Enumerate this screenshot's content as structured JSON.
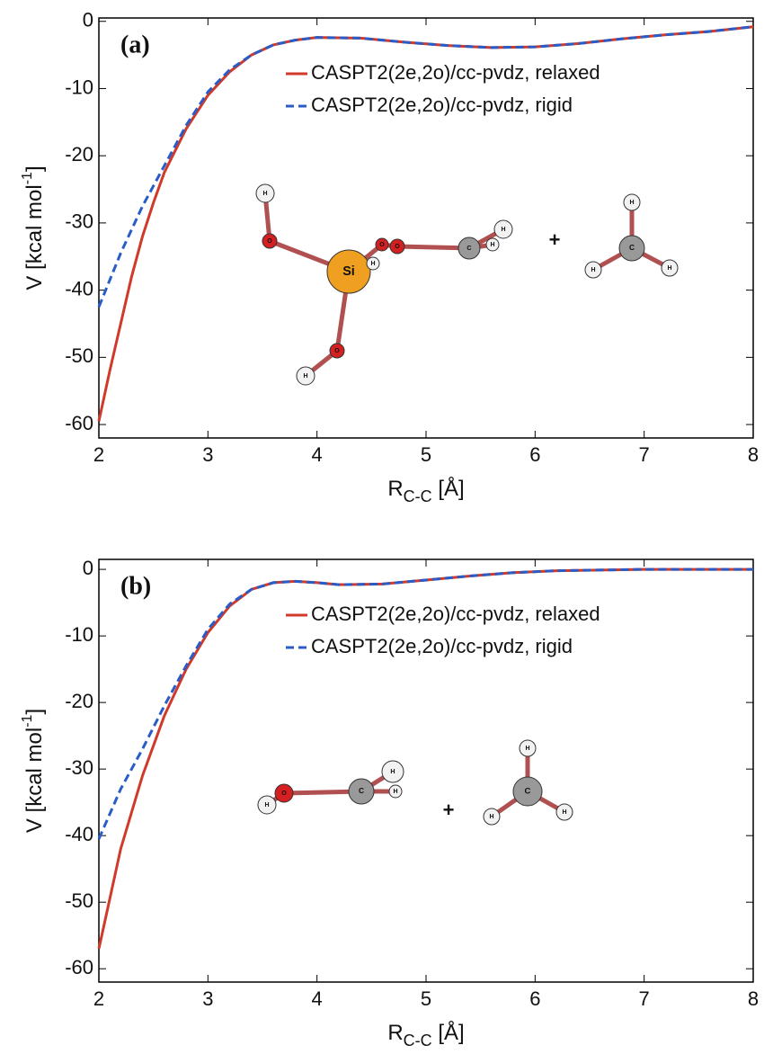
{
  "chart_data": [
    {
      "type": "line",
      "label": "(a)",
      "xlabel": {
        "main": "R",
        "sub": "C-C",
        "rest": " [Å]"
      },
      "ylabel": {
        "main": "V [kcal mol",
        "sup": "-1",
        "rest": "]"
      },
      "x": [
        2,
        2.1,
        2.2,
        2.3,
        2.4,
        2.5,
        2.6,
        2.8,
        3.0,
        3.2,
        3.4,
        3.6,
        3.8,
        4.0,
        4.4,
        4.8,
        5.2,
        5.6,
        6.0,
        6.4,
        6.8,
        7.2,
        7.6,
        8
      ],
      "series": [
        {
          "name": "CASPT2(2e,2o)/cc-pvdz, relaxed",
          "color": "#d03a2a",
          "dash": false,
          "values": [
            -59.5,
            -52,
            -45,
            -38,
            -32,
            -27,
            -22.5,
            -16,
            -11,
            -7.5,
            -5,
            -3.5,
            -2.8,
            -2.4,
            -2.5,
            -3.1,
            -3.6,
            -3.9,
            -3.8,
            -3.3,
            -2.6,
            -2,
            -1.5,
            -0.8
          ]
        },
        {
          "name": "CASPT2(2e,2o)/cc-pvdz, rigid",
          "color": "#2a5cc8",
          "dash": true,
          "values": [
            -42.5,
            -38.5,
            -34.5,
            -31,
            -27.5,
            -24.5,
            -21.5,
            -15.5,
            -10.5,
            -7.2,
            -5,
            -3.5,
            -2.8,
            -2.4,
            -2.5,
            -3.1,
            -3.6,
            -3.9,
            -3.8,
            -3.3,
            -2.6,
            -2,
            -1.5,
            -0.8
          ]
        }
      ],
      "xlim": [
        2,
        8
      ],
      "ylim": [
        -62,
        0.5
      ],
      "xticks": [
        2,
        3,
        4,
        5,
        6,
        7,
        8
      ],
      "yticks": [
        0,
        -10,
        -20,
        -30,
        -40,
        -50,
        -60
      ],
      "legend": "upper right",
      "annotations": [
        "H",
        "O",
        "Si",
        "H",
        "O",
        "O",
        "C",
        "H",
        "H",
        "O",
        "H",
        "+",
        "C",
        "H",
        "H",
        "H"
      ]
    },
    {
      "type": "line",
      "label": "(b)",
      "xlabel": {
        "main": "R",
        "sub": "C-C",
        "rest": " [Å]"
      },
      "ylabel": {
        "main": "V [kcal mol",
        "sup": "-1",
        "rest": "]"
      },
      "x": [
        2,
        2.2,
        2.4,
        2.6,
        2.8,
        3.0,
        3.2,
        3.4,
        3.6,
        3.8,
        4.0,
        4.2,
        4.6,
        5.0,
        5.4,
        5.8,
        6.2,
        7,
        8
      ],
      "series": [
        {
          "name": "CASPT2(2e,2o)/cc-pvdz, relaxed",
          "color": "#d03a2a",
          "dash": false,
          "values": [
            -57,
            -42,
            -31,
            -22,
            -15,
            -9.5,
            -5.5,
            -3,
            -2,
            -1.8,
            -2,
            -2.3,
            -2.2,
            -1.6,
            -1,
            -0.5,
            -0.2,
            0,
            0
          ]
        },
        {
          "name": "CASPT2(2e,2o)/cc-pvdz, rigid",
          "color": "#2a5cc8",
          "dash": true,
          "values": [
            -40.5,
            -33,
            -27,
            -20.5,
            -14.5,
            -9,
            -5.2,
            -3,
            -2,
            -1.8,
            -2,
            -2.3,
            -2.2,
            -1.6,
            -1,
            -0.5,
            -0.2,
            0,
            0
          ]
        }
      ],
      "xlim": [
        2,
        8
      ],
      "ylim": [
        -62,
        1.5
      ],
      "xticks": [
        2,
        3,
        4,
        5,
        6,
        7,
        8
      ],
      "yticks": [
        0,
        -10,
        -20,
        -30,
        -40,
        -50,
        -60
      ],
      "legend": "upper right",
      "annotations": [
        "O",
        "H",
        "C",
        "H",
        "H",
        "+",
        "C",
        "H",
        "H",
        "H"
      ]
    }
  ]
}
